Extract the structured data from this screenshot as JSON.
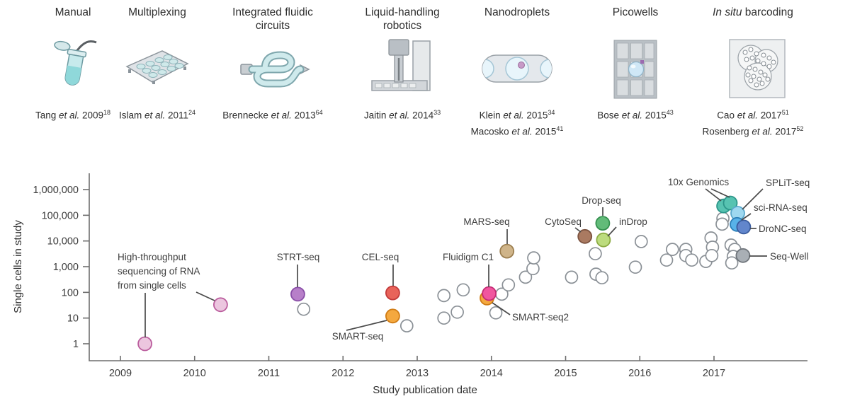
{
  "timeline": {
    "items": [
      {
        "icon": "tube-icon",
        "title_lines": [
          [
            {
              "t": "Manual"
            }
          ]
        ],
        "citations": [
          {
            "pre": "Tang ",
            "etal": "et al.",
            "post": " 2009",
            "sup": "18"
          }
        ]
      },
      {
        "icon": "microwell-plate-icon",
        "title_lines": [
          [
            {
              "t": "Multiplexing"
            }
          ]
        ],
        "citations": [
          {
            "pre": "Islam ",
            "etal": "et al.",
            "post": " 2011",
            "sup": "24"
          }
        ]
      },
      {
        "icon": "fluidic-circuit-icon",
        "title_lines": [
          [
            {
              "t": "Integrated fluidic"
            }
          ],
          [
            {
              "t": "circuits"
            }
          ]
        ],
        "citations": [
          {
            "pre": "Brennecke ",
            "etal": "et al.",
            "post": " 2013",
            "sup": "64"
          }
        ]
      },
      {
        "icon": "robot-dispenser-icon",
        "title_lines": [
          [
            {
              "t": "Liquid-handling"
            }
          ],
          [
            {
              "t": "robotics"
            }
          ]
        ],
        "citations": [
          {
            "pre": "Jaitin ",
            "etal": "et al.",
            "post": " 2014",
            "sup": "33"
          }
        ]
      },
      {
        "icon": "droplet-channel-icon",
        "title_lines": [
          [
            {
              "t": "Nanodroplets"
            }
          ]
        ],
        "citations": [
          {
            "pre": "Klein ",
            "etal": "et al.",
            "post": " 2015",
            "sup": "34"
          },
          {
            "pre": "Macosko ",
            "etal": "et al.",
            "post": " 2015",
            "sup": "41"
          }
        ]
      },
      {
        "icon": "picowell-grid-icon",
        "title_lines": [
          [
            {
              "t": "Picowells"
            }
          ]
        ],
        "citations": [
          {
            "pre": "Bose ",
            "etal": "et al.",
            "post": " 2015",
            "sup": "43"
          }
        ]
      },
      {
        "icon": "cell-cluster-icon",
        "title_lines": [
          [
            {
              "t": "In situ",
              "i": true
            },
            {
              "t": " barcoding"
            }
          ]
        ],
        "citations": [
          {
            "pre": "Cao ",
            "etal": "et al.",
            "post": " 2017",
            "sup": "51"
          },
          {
            "pre": "Rosenberg ",
            "etal": "et al.",
            "post": " 2017",
            "sup": "52"
          }
        ]
      }
    ]
  },
  "chart_data": {
    "type": "scatter",
    "xlabel": "Study publication date",
    "ylabel": "Single cells in study",
    "y_scale": "log",
    "xlim": [
      2008.6,
      2018.3
    ],
    "ylim": [
      1,
      1000000
    ],
    "grid": false,
    "x_ticks": [
      "2009",
      "2010",
      "2011",
      "2012",
      "2013",
      "2014",
      "2015",
      "2016",
      "2017"
    ],
    "y_ticks": [
      {
        "value": 1,
        "label": "1"
      },
      {
        "value": 10,
        "label": "10"
      },
      {
        "value": 100,
        "label": "100"
      },
      {
        "value": 1000,
        "label": "1,000"
      },
      {
        "value": 10000,
        "label": "10,000"
      },
      {
        "value": 100000,
        "label": "100,000"
      },
      {
        "value": 1000000,
        "label": "1,000,000"
      }
    ],
    "colors": {
      "open": {
        "fill": "#ffffff",
        "stroke": "#8a9096"
      },
      "pink_light": {
        "fill": "#ecc6df",
        "stroke": "#bb5e9e"
      },
      "purple": {
        "fill": "#b77fc9",
        "stroke": "#8a4fa8"
      },
      "red": {
        "fill": "#e8635a",
        "stroke": "#c23a3a"
      },
      "orange": {
        "fill": "#f4a83f",
        "stroke": "#d07c15"
      },
      "magenta": {
        "fill": "#f0569f",
        "stroke": "#c42a74"
      },
      "tan": {
        "fill": "#cfb489",
        "stroke": "#9c7f50"
      },
      "brown": {
        "fill": "#aa7a61",
        "stroke": "#7c5340"
      },
      "green": {
        "fill": "#62bb79",
        "stroke": "#35904f"
      },
      "lime": {
        "fill": "#bcdc7e",
        "stroke": "#8cab43"
      },
      "teal": {
        "fill": "#57c3b1",
        "stroke": "#2c968a"
      },
      "sky": {
        "fill": "#9ed8f0",
        "stroke": "#5aa9cd"
      },
      "blue": {
        "fill": "#58b2e8",
        "stroke": "#2b7fb8"
      },
      "indigo": {
        "fill": "#6286cc",
        "stroke": "#3a5c9e"
      },
      "gray": {
        "fill": "#a9afb5",
        "stroke": "#70767c"
      }
    },
    "points": [
      {
        "year": 2011.47,
        "cells": 22,
        "c": "open"
      },
      {
        "year": 2012.86,
        "cells": 5,
        "c": "open"
      },
      {
        "year": 2013.36,
        "cells": 75,
        "c": "open"
      },
      {
        "year": 2013.62,
        "cells": 125,
        "c": "open"
      },
      {
        "year": 2013.36,
        "cells": 10,
        "c": "open"
      },
      {
        "year": 2013.54,
        "cells": 17,
        "c": "open"
      },
      {
        "year": 2014.06,
        "cells": 16,
        "c": "open"
      },
      {
        "year": 2014.14,
        "cells": 85,
        "c": "open"
      },
      {
        "year": 2014.23,
        "cells": 195,
        "c": "open"
      },
      {
        "year": 2014.46,
        "cells": 390,
        "c": "open"
      },
      {
        "year": 2014.56,
        "cells": 840,
        "c": "open"
      },
      {
        "year": 2014.57,
        "cells": 2200,
        "c": "open"
      },
      {
        "year": 2015.08,
        "cells": 390,
        "c": "open"
      },
      {
        "year": 2015.4,
        "cells": 3200,
        "c": "open"
      },
      {
        "year": 2015.41,
        "cells": 510,
        "c": "open"
      },
      {
        "year": 2015.49,
        "cells": 370,
        "c": "open"
      },
      {
        "year": 2015.94,
        "cells": 960,
        "c": "open"
      },
      {
        "year": 2016.02,
        "cells": 9500,
        "c": "open"
      },
      {
        "year": 2016.36,
        "cells": 1800,
        "c": "open"
      },
      {
        "year": 2016.44,
        "cells": 4700,
        "c": "open"
      },
      {
        "year": 2016.62,
        "cells": 4700,
        "c": "open"
      },
      {
        "year": 2016.62,
        "cells": 2700,
        "c": "open"
      },
      {
        "year": 2016.7,
        "cells": 1800,
        "c": "open"
      },
      {
        "year": 2016.89,
        "cells": 1600,
        "c": "open"
      },
      {
        "year": 2016.96,
        "cells": 13000,
        "c": "open"
      },
      {
        "year": 2016.98,
        "cells": 5700,
        "c": "open"
      },
      {
        "year": 2016.97,
        "cells": 2700,
        "c": "open"
      },
      {
        "year": 2017.12,
        "cells": 75000,
        "c": "open"
      },
      {
        "year": 2017.11,
        "cells": 45000,
        "c": "open"
      },
      {
        "year": 2017.23,
        "cells": 6900,
        "c": "open"
      },
      {
        "year": 2017.28,
        "cells": 4700,
        "c": "open"
      },
      {
        "year": 2017.26,
        "cells": 2500,
        "c": "open"
      },
      {
        "year": 2017.24,
        "cells": 1400,
        "c": "open"
      },
      {
        "year": 2009.33,
        "cells": 1,
        "c": "pink_light",
        "label": "High-throughput sequencing of RNA from single cells"
      },
      {
        "year": 2010.35,
        "cells": 33,
        "c": "pink_light",
        "label": "High-throughput sequencing of RNA from single cells"
      },
      {
        "year": 2011.39,
        "cells": 85,
        "c": "purple",
        "label": "STRT-seq"
      },
      {
        "year": 2012.67,
        "cells": 95,
        "c": "red",
        "label": "CEL-seq"
      },
      {
        "year": 2012.67,
        "cells": 12,
        "c": "orange",
        "label": "SMART-seq"
      },
      {
        "year": 2013.94,
        "cells": 60,
        "c": "orange",
        "label": "SMART-seq2"
      },
      {
        "year": 2013.97,
        "cells": 90,
        "c": "magenta",
        "label": "Fluidigm C1"
      },
      {
        "year": 2014.21,
        "cells": 4000,
        "c": "tan",
        "label": "MARS-seq"
      },
      {
        "year": 2015.26,
        "cells": 15000,
        "c": "brown",
        "label": "CytoSeq"
      },
      {
        "year": 2015.5,
        "cells": 49000,
        "c": "green",
        "label": "Drop-seq"
      },
      {
        "year": 2015.51,
        "cells": 11000,
        "c": "lime",
        "label": "inDrop"
      },
      {
        "year": 2017.13,
        "cells": 230000,
        "c": "teal",
        "label": "10x Genomics"
      },
      {
        "year": 2017.22,
        "cells": 300000,
        "c": "teal",
        "label": "10x Genomics"
      },
      {
        "year": 2017.32,
        "cells": 120000,
        "c": "sky",
        "label": "SPLiT-seq"
      },
      {
        "year": 2017.31,
        "cells": 44000,
        "c": "blue",
        "label": "sci-RNA-seq"
      },
      {
        "year": 2017.4,
        "cells": 35000,
        "c": "indigo",
        "label": "DroNC-seq"
      },
      {
        "year": 2017.39,
        "cells": 2700,
        "c": "gray",
        "label": "Seq-Well"
      }
    ],
    "annotations": [
      {
        "lines": [
          "High-throughput",
          "sequencing of RNA",
          "from single cells"
        ],
        "x": 166,
        "y": 368,
        "anchor": "start",
        "leaders": [
          [
            205,
            414,
            205,
            477
          ],
          [
            277,
            413,
            303,
            425
          ]
        ]
      },
      {
        "lines": [
          "STRT-seq"
        ],
        "x": 421,
        "y": 368,
        "anchor": "middle",
        "leaders": [
          [
            420,
            374,
            420,
            406
          ]
        ]
      },
      {
        "lines": [
          "CEL-seq"
        ],
        "x": 537,
        "y": 368,
        "anchor": "middle",
        "leaders": [
          [
            555,
            374,
            555,
            404
          ]
        ]
      },
      {
        "lines": [
          "SMART-seq"
        ],
        "x": 505,
        "y": 480,
        "anchor": "middle",
        "leaders": [
          [
            546,
            453,
            489,
            467
          ]
        ]
      },
      {
        "lines": [
          "Fluidigm C1"
        ],
        "x": 661,
        "y": 368,
        "anchor": "middle",
        "leaders": [
          [
            690,
            374,
            690,
            406
          ]
        ]
      },
      {
        "lines": [
          "MARS-seq"
        ],
        "x": 687,
        "y": 318,
        "anchor": "middle",
        "leaders": [
          [
            716,
            324,
            716,
            345
          ]
        ]
      },
      {
        "lines": [
          "SMART-seq2"
        ],
        "x": 723,
        "y": 453,
        "anchor": "start",
        "leaders": [
          [
            695,
            428,
            720,
            445
          ]
        ]
      },
      {
        "lines": [
          "CytoSeq"
        ],
        "x": 795,
        "y": 318,
        "anchor": "middle",
        "leaders": [
          [
            812,
            322,
            820,
            328
          ]
        ]
      },
      {
        "lines": [
          "Drop-seq"
        ],
        "x": 849,
        "y": 288,
        "anchor": "middle",
        "leaders": [
          [
            851,
            293,
            851,
            305
          ]
        ]
      },
      {
        "lines": [
          "inDrop"
        ],
        "x": 874,
        "y": 318,
        "anchor": "start",
        "leaders": [
          [
            870,
            321,
            858,
            334
          ]
        ]
      },
      {
        "lines": [
          "10x Genomics"
        ],
        "x": 986,
        "y": 262,
        "anchor": "middle",
        "leaders": [
          [
            996,
            267,
            1018,
            284
          ],
          [
            1004,
            267,
            1030,
            279
          ]
        ]
      },
      {
        "lines": [
          "SPLiT-seq"
        ],
        "x": 1081,
        "y": 263,
        "anchor": "start",
        "leaders": [
          [
            1077,
            267,
            1048,
            296
          ]
        ]
      },
      {
        "lines": [
          "sci-RNA-seq"
        ],
        "x": 1064,
        "y": 298,
        "anchor": "start",
        "leaders": [
          [
            1060,
            302,
            1047,
            311
          ]
        ]
      },
      {
        "lines": [
          "DroNC-seq"
        ],
        "x": 1071,
        "y": 328,
        "anchor": "start",
        "leaders": [
          [
            1059,
            323,
            1068,
            323
          ]
        ]
      },
      {
        "lines": [
          "Seq-Well"
        ],
        "x": 1087,
        "y": 367,
        "anchor": "start",
        "leaders": [
          [
            1058,
            362,
            1083,
            362
          ]
        ]
      }
    ],
    "leader_color": "#4a4a4a",
    "axis_color": "#6e6e6e",
    "tick_text_color": "#3c3c3c"
  }
}
